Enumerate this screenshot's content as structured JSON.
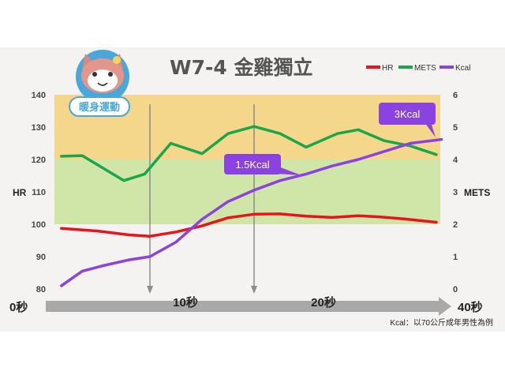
{
  "chart_data": {
    "type": "line",
    "title": "W7-4  金雞獨立",
    "badge": "暖身運動",
    "badge_icon": "cat-mascot-icon",
    "left_axis": {
      "label": "HR",
      "range": [
        80,
        140
      ],
      "ticks": [
        80,
        90,
        100,
        110,
        120,
        130,
        140
      ]
    },
    "right_axis": {
      "label": "METS",
      "range": [
        0,
        6
      ],
      "ticks": [
        0,
        1,
        2,
        3,
        4,
        5,
        6
      ]
    },
    "time_axis": {
      "range": [
        0,
        40
      ],
      "labels": [
        {
          "t": 0,
          "text": "0秒"
        },
        {
          "t": 10,
          "text": "10秒"
        },
        {
          "t": 20,
          "text": "20秒"
        },
        {
          "t": 40,
          "text": "40秒"
        }
      ],
      "markers": [
        10,
        20
      ]
    },
    "zones": [
      {
        "name": "yellow-zone",
        "from": 120,
        "to": 140,
        "color": "#f5d78c"
      },
      {
        "name": "green-zone",
        "from": 100,
        "to": 120,
        "color": "#cfe6a8"
      }
    ],
    "legend": [
      {
        "name": "HR",
        "color": "#e8141b"
      },
      {
        "name": "METS",
        "color": "#1aa64a"
      },
      {
        "name": "Kcal",
        "color": "#8a42e0"
      }
    ],
    "series": [
      {
        "name": "HR",
        "axis": "left",
        "color": "#e8141b",
        "t": [
          1.5,
          5,
          8,
          10,
          12.5,
          15,
          17.5,
          20,
          22.5,
          25,
          27.5,
          30,
          32,
          34.5,
          37.5
        ],
        "values": [
          98.7,
          97.9,
          96.7,
          96.3,
          97.6,
          99.5,
          102,
          103.1,
          103.2,
          102.5,
          102.1,
          102.6,
          102.3,
          101.6,
          100.6
        ]
      },
      {
        "name": "METS",
        "axis": "right",
        "color": "#1aa64a",
        "t": [
          1.5,
          3.5,
          7.5,
          9.5,
          12,
          15,
          17.5,
          20,
          22.5,
          25,
          28,
          30,
          32.5,
          35,
          37.5
        ],
        "values": [
          4.1,
          4.12,
          3.35,
          3.55,
          4.5,
          4.18,
          4.8,
          5.02,
          4.8,
          4.38,
          4.8,
          4.92,
          4.58,
          4.42,
          4.15
        ]
      },
      {
        "name": "Kcal",
        "axis": "right",
        "color": "#8a42e0",
        "t": [
          1.5,
          3.5,
          5.5,
          8,
          10,
          12.5,
          15,
          17.5,
          20,
          22.5,
          25,
          27.5,
          30,
          32.5,
          35,
          38
        ],
        "values": [
          0.1,
          0.55,
          0.72,
          0.9,
          1.0,
          1.45,
          2.15,
          2.7,
          3.05,
          3.35,
          3.55,
          3.8,
          4.0,
          4.25,
          4.5,
          4.62
        ]
      }
    ],
    "callouts": [
      {
        "text": "1.5Kcal",
        "color": "#8a42e0"
      },
      {
        "text": "3Kcal",
        "color": "#8a42e0"
      }
    ],
    "footnote": "Kcal：以70公斤成年男性為例"
  }
}
